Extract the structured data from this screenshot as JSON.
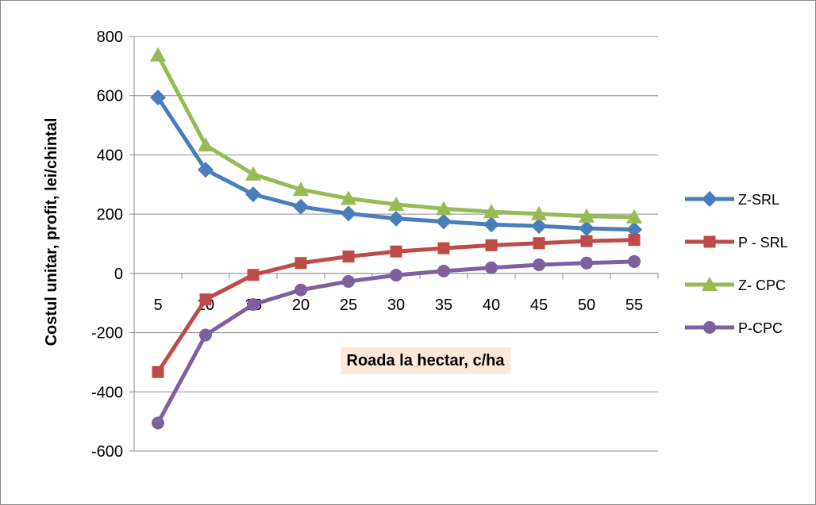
{
  "chart_data": {
    "type": "line",
    "title": "",
    "xlabel": "Roada la hectar, c/ha",
    "ylabel": "Costul unitar, profit, lei/chintal",
    "categories": [
      "5",
      "10",
      "15",
      "20",
      "25",
      "30",
      "35",
      "40",
      "45",
      "50",
      "55"
    ],
    "x": [
      5,
      10,
      15,
      20,
      25,
      30,
      35,
      40,
      45,
      50,
      55
    ],
    "ylim": [
      -600,
      800
    ],
    "yticks": [
      "-600",
      "-400",
      "-200",
      "0",
      "200",
      "400",
      "600",
      "800"
    ],
    "grid": "horizontal",
    "legend_position": "right",
    "series": [
      {
        "name": "Z-SRL",
        "marker": "diamond",
        "color": "#4a7ebb",
        "values": [
          594,
          350,
          267,
          225,
          202,
          185,
          175,
          165,
          160,
          152,
          148
        ]
      },
      {
        "name": "P - SRL",
        "marker": "square",
        "color": "#be4b48",
        "values": [
          -333,
          -88,
          -5,
          35,
          57,
          74,
          85,
          95,
          102,
          109,
          113
        ]
      },
      {
        "name": "Z- CPC",
        "marker": "triangle",
        "color": "#98b954",
        "values": [
          737,
          433,
          335,
          283,
          253,
          233,
          218,
          208,
          201,
          193,
          190
        ]
      },
      {
        "name": "P-CPC",
        "marker": "circle",
        "color": "#7d60a0",
        "values": [
          -505,
          -208,
          -105,
          -56,
          -27,
          -6,
          8,
          19,
          29,
          35,
          40
        ]
      }
    ]
  }
}
